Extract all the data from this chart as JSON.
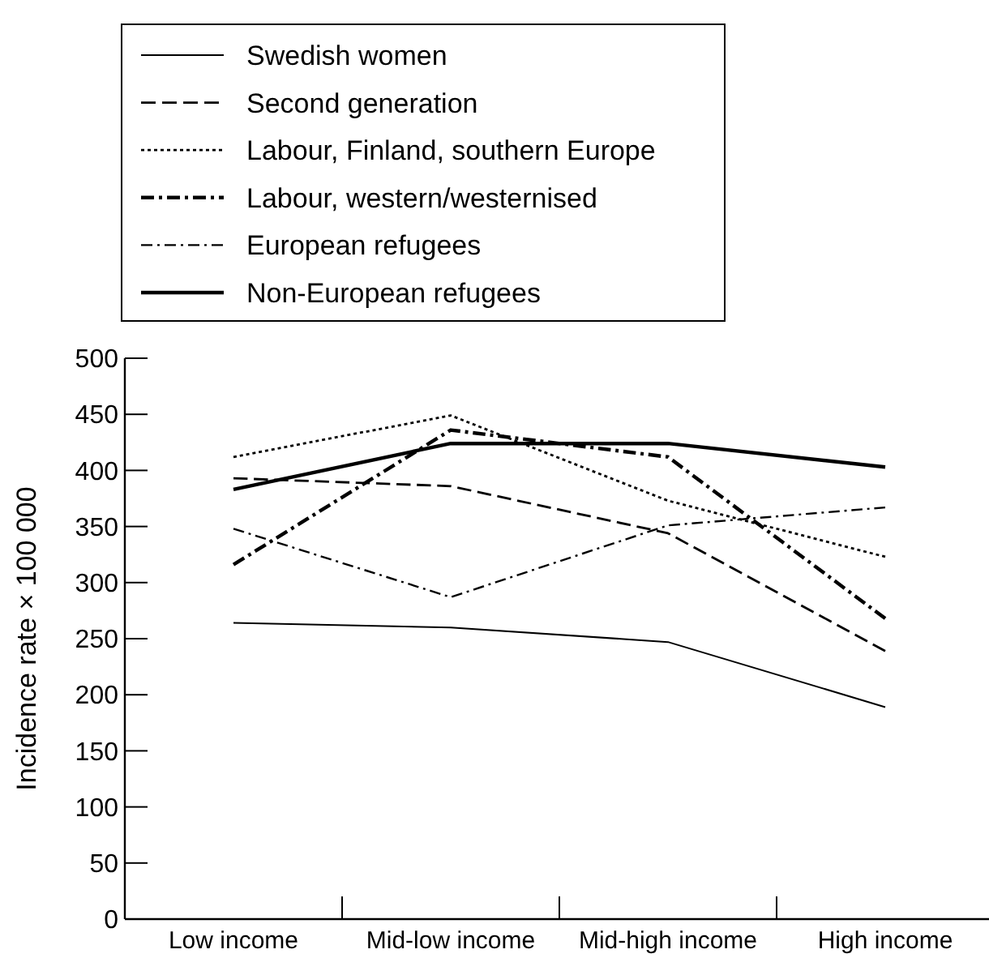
{
  "chart_data": {
    "type": "line",
    "ylabel": "Incidence rate × 100 000",
    "categories": [
      "Low income",
      "Mid-low income",
      "Mid-high income",
      "High income"
    ],
    "ylim": [
      0,
      500
    ],
    "yticks": [
      0,
      50,
      100,
      150,
      200,
      250,
      300,
      350,
      400,
      450,
      500
    ],
    "legend": "top",
    "grid": false,
    "marker": "none",
    "series": [
      {
        "name": "Swedish women",
        "color": "#000000",
        "line_style": "solid",
        "values": [
          264,
          260,
          247,
          189
        ]
      },
      {
        "name": "Second generation",
        "color": "#000000",
        "line_style": "dashed",
        "values": [
          393,
          386,
          344,
          239
        ]
      },
      {
        "name": "Labour, Finland, southern Europe",
        "color": "#000000",
        "line_style": "dotted",
        "values": [
          412,
          449,
          373,
          323
        ]
      },
      {
        "name": "Labour, western/westernised",
        "color": "#000000",
        "line_style": "dashdot",
        "values": [
          316,
          436,
          412,
          268
        ]
      },
      {
        "name": "European refugees",
        "color": "#000000",
        "line_style": "dashdot",
        "values": [
          348,
          287,
          351,
          367
        ]
      },
      {
        "name": "Non-European refugees",
        "color": "#000000",
        "line_style": "solid",
        "values": [
          383,
          424,
          424,
          403
        ]
      }
    ]
  }
}
